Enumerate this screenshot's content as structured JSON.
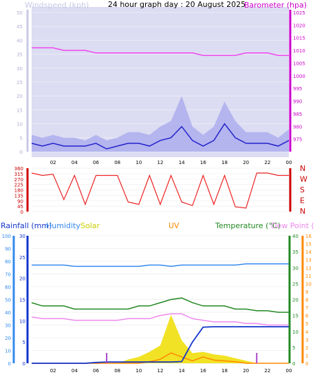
{
  "header": {
    "title": "24 hour graph day : 20 August 2025",
    "windspeed_label": "Windspeed (kph)",
    "barometer_label": "Barometer (hpa)"
  },
  "colors": {
    "plot_bg": "#dcdcf2",
    "wind": "#2222cc",
    "gust": "#aaaaee",
    "barometer": "#ee44ee",
    "direction": "#ee2222",
    "rain": "#1133cc",
    "humidity": "#3388ee",
    "solar": "#eedd00",
    "uv": "#ff8800",
    "temperature": "#228822",
    "dewpoint": "#ee88ee",
    "purple_axis": "#cc00cc",
    "red_axis": "#cc0000"
  },
  "x_ticks": [
    "02",
    "04",
    "06",
    "08",
    "10",
    "12",
    "14",
    "16",
    "18",
    "20",
    "22",
    "00"
  ],
  "chart_data": [
    {
      "type": "line",
      "name": "wind-barometer",
      "x": [
        0,
        1,
        2,
        3,
        4,
        5,
        6,
        7,
        8,
        9,
        10,
        11,
        12,
        13,
        14,
        15,
        16,
        17,
        18,
        19,
        20,
        21,
        22,
        23,
        24
      ],
      "series": [
        {
          "name": "Windspeed (kph)",
          "axis": "left",
          "values": [
            3,
            2,
            3,
            2,
            2,
            2,
            3,
            1,
            2,
            3,
            3,
            2,
            4,
            5,
            9,
            4,
            2,
            4,
            10,
            5,
            3,
            3,
            3,
            2,
            4
          ]
        },
        {
          "name": "gust",
          "axis": "left",
          "values": [
            6,
            5,
            6,
            5,
            5,
            4,
            6,
            4,
            5,
            7,
            7,
            6,
            9,
            11,
            20,
            9,
            6,
            9,
            18,
            11,
            7,
            7,
            7,
            5,
            8
          ]
        },
        {
          "name": "Barometer (hpa)",
          "axis": "right",
          "values": [
            1011,
            1011,
            1011,
            1010,
            1010,
            1010,
            1009,
            1009,
            1009,
            1009,
            1009,
            1009,
            1009,
            1009,
            1009,
            1009,
            1008,
            1008,
            1008,
            1008,
            1009,
            1009,
            1009,
            1008,
            1008
          ]
        }
      ],
      "yleft": {
        "label": "Windspeed (kph)",
        "min": 0,
        "max": 50,
        "ticks": [
          0,
          5,
          10,
          15,
          20,
          25,
          30,
          35,
          40,
          45,
          50
        ]
      },
      "yright": {
        "label": "Barometer (hpa)",
        "min": 970,
        "max": 1025,
        "ticks": [
          975,
          980,
          985,
          990,
          995,
          1000,
          1005,
          1010,
          1015,
          1020,
          1025
        ]
      }
    },
    {
      "type": "line",
      "name": "wind-direction",
      "x": [
        0,
        1,
        2,
        3,
        4,
        5,
        6,
        7,
        8,
        9,
        10,
        11,
        12,
        13,
        14,
        15,
        16,
        17,
        18,
        19,
        20,
        21,
        22,
        23,
        24
      ],
      "series": [
        {
          "name": "direction",
          "values": [
            320,
            300,
            310,
            100,
            300,
            60,
            300,
            300,
            300,
            80,
            60,
            300,
            60,
            300,
            80,
            50,
            300,
            60,
            300,
            40,
            30,
            320,
            320,
            300,
            300
          ]
        }
      ],
      "y_ticks": [
        0,
        45,
        90,
        135,
        180,
        225,
        270,
        315,
        360
      ],
      "compass": [
        "N",
        "W",
        "S",
        "E",
        "N"
      ]
    },
    {
      "type": "line",
      "name": "rain-humidity-temp",
      "x": [
        0,
        1,
        2,
        3,
        4,
        5,
        6,
        7,
        8,
        9,
        10,
        11,
        12,
        13,
        14,
        15,
        16,
        17,
        18,
        19,
        20,
        21,
        22,
        23,
        24
      ],
      "series": [
        {
          "name": "Rainfall (mm)",
          "axis": "rain",
          "values": [
            0,
            0,
            0,
            0,
            0,
            0,
            0.2,
            0.3,
            0.3,
            0.3,
            0.3,
            0.3,
            0.3,
            0.3,
            0.4,
            5,
            8.5,
            8.6,
            8.6,
            8.6,
            8.6,
            8.6,
            8.6,
            8.6,
            8.6
          ]
        },
        {
          "name": "Humidity",
          "axis": "humidity",
          "values": [
            77,
            77,
            77,
            77,
            76,
            76,
            76,
            76,
            76,
            76,
            76,
            77,
            77,
            76,
            77,
            77,
            77,
            77,
            77,
            77,
            78,
            78,
            78,
            78,
            78
          ]
        },
        {
          "name": "Temperature (°C)",
          "axis": "temp",
          "values": [
            19,
            18,
            18,
            18,
            17,
            17,
            17,
            17,
            17,
            17,
            18,
            18,
            19,
            20,
            20.5,
            19,
            18,
            18,
            18,
            17,
            17,
            16.5,
            16.5,
            16,
            16
          ]
        },
        {
          "name": "Dew Point (°C)",
          "axis": "temp",
          "values": [
            14.5,
            14,
            14,
            14,
            13.5,
            13.5,
            13.5,
            13.5,
            13.5,
            14,
            14,
            14,
            15,
            15.5,
            15.5,
            14,
            13.5,
            13,
            13,
            13,
            12.5,
            12.5,
            12,
            12,
            12
          ]
        },
        {
          "name": "Solar",
          "axis": "solar",
          "values": [
            0,
            0,
            0,
            0,
            0,
            0,
            0,
            0,
            0,
            3,
            5,
            9,
            14,
            38,
            18,
            8,
            9,
            7,
            6,
            4,
            2,
            0,
            0,
            0,
            0
          ]
        },
        {
          "name": "UV",
          "axis": "uv",
          "values": [
            0,
            0,
            0,
            0,
            0,
            0,
            0,
            0,
            0,
            0,
            0,
            0.2,
            0.5,
            1.3,
            0.8,
            0.3,
            0.8,
            0.4,
            0.3,
            0.2,
            0,
            0,
            0,
            0,
            0
          ]
        }
      ],
      "rain_axis": {
        "ticks": [
          0,
          10,
          20,
          30,
          40,
          50,
          60,
          70,
          80,
          90,
          100
        ],
        "min": 0,
        "max": 100
      },
      "humidity_axis": {
        "ticks": [
          0,
          5,
          10,
          15,
          20,
          25,
          30
        ],
        "min": 0,
        "max": 30
      },
      "temp_axis": {
        "ticks": [
          0,
          5,
          10,
          15,
          20,
          25,
          30,
          35,
          40
        ],
        "min": 0,
        "max": 40
      },
      "uv_axis": {
        "ticks": [
          0,
          1,
          2,
          3,
          4,
          5,
          6,
          7,
          8,
          9,
          10,
          11,
          12,
          13,
          14,
          15,
          16
        ],
        "min": 0,
        "max": 16
      },
      "legend": {
        "rain": "Rainfall (mm)",
        "humidity": "Humidity",
        "solar": "Solar",
        "uv": "UV",
        "temperature": "Temperature (°C)",
        "dewpoint": "Dew Point (°C)"
      }
    }
  ]
}
